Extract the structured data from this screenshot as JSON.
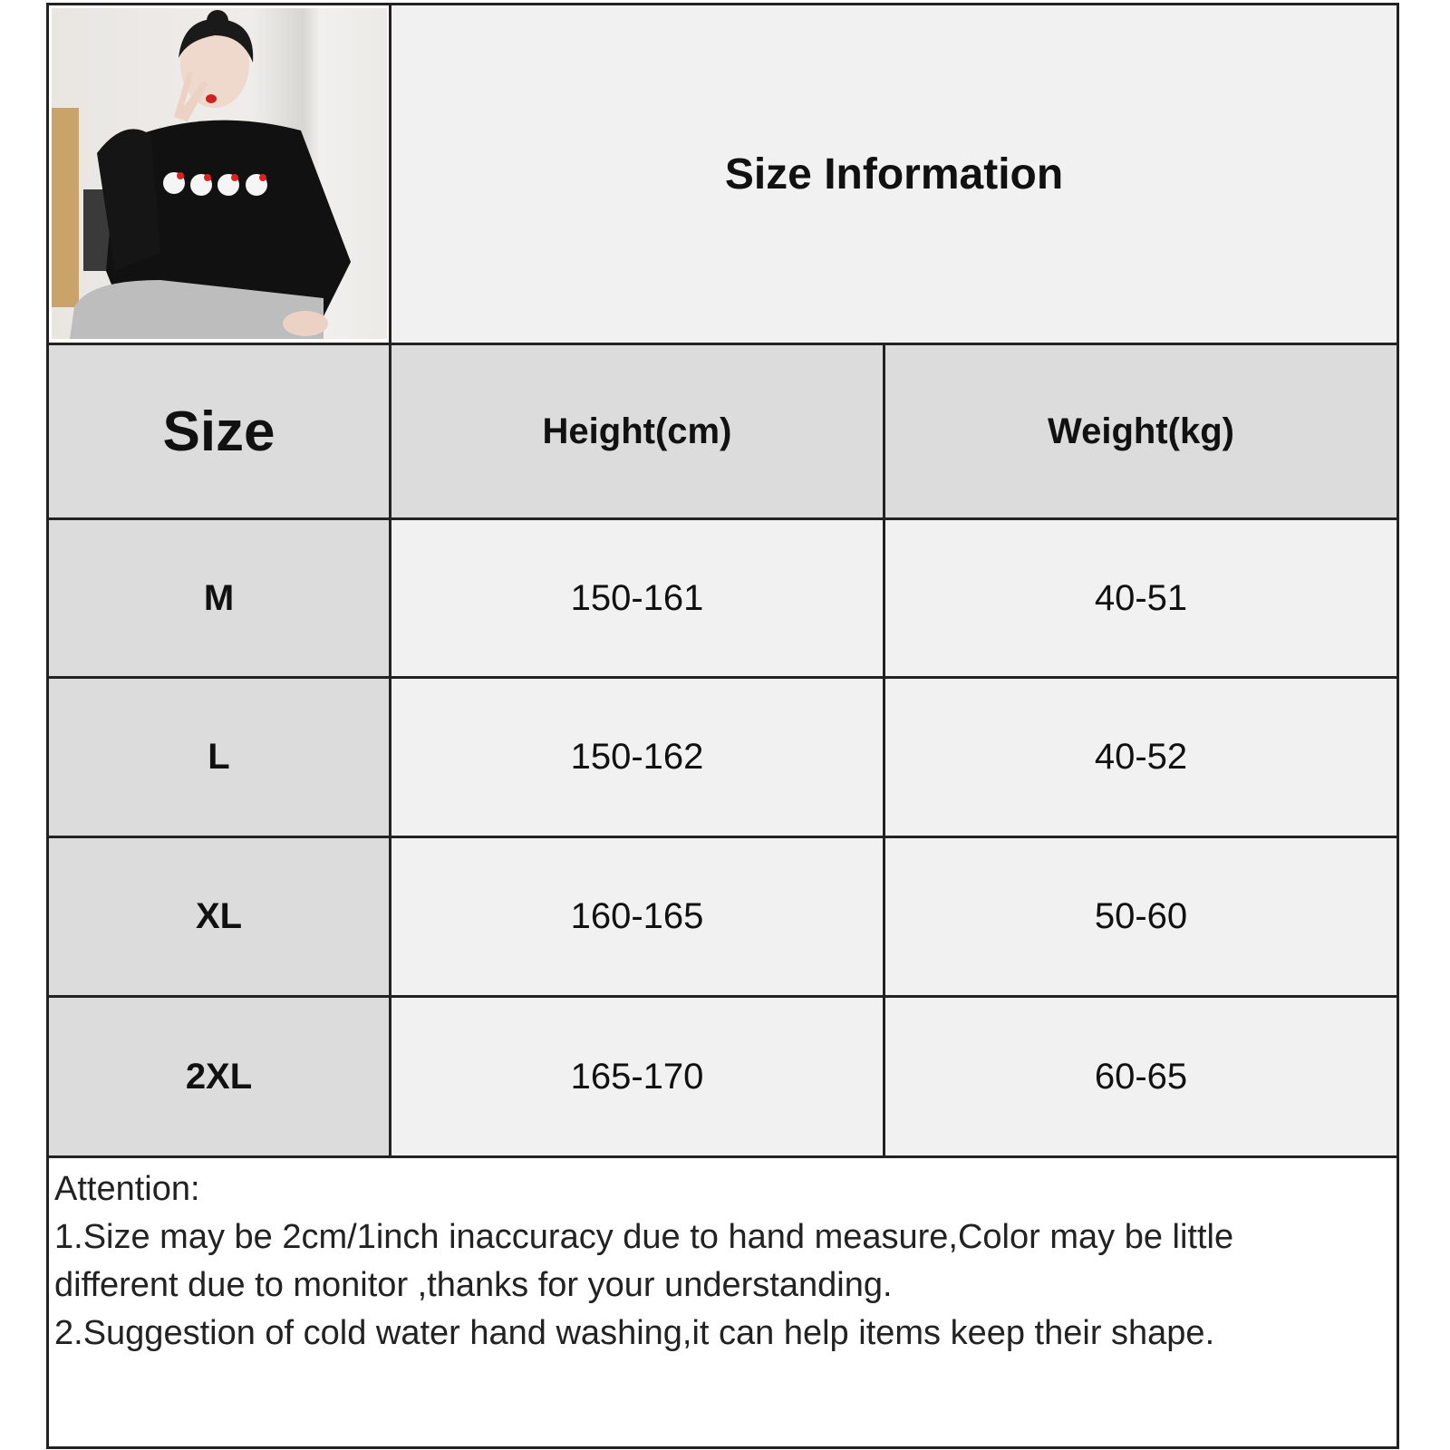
{
  "title": "Size Information",
  "photo": {
    "alt_subject": "model-wearing-black-sweatshirt",
    "colors": {
      "sweatshirt": "#111111",
      "pants": "#bdbdbd",
      "wall": "#ecebe8"
    }
  },
  "table": {
    "headers": [
      "Size",
      "Height(cm)",
      "Weight(kg)"
    ],
    "rows": [
      {
        "size": "M",
        "height": "150-161",
        "weight": "40-51"
      },
      {
        "size": "L",
        "height": "150-162",
        "weight": "40-52"
      },
      {
        "size": "XL",
        "height": "160-165",
        "weight": "50-60"
      },
      {
        "size": "2XL",
        "height": "165-170",
        "weight": "60-65"
      }
    ]
  },
  "notes": {
    "heading": "Attention:",
    "line1": "1.Size may be 2cm/1inch inaccuracy due to hand measure,Color may be little",
    "line2": "different due to monitor ,thanks for your understanding.",
    "line3": "2.Suggestion of cold water hand washing,it can help items keep their shape."
  },
  "colors": {
    "header_bg": "#dcdcdc",
    "cell_bg": "#f1f1f1",
    "border": "#222222"
  }
}
